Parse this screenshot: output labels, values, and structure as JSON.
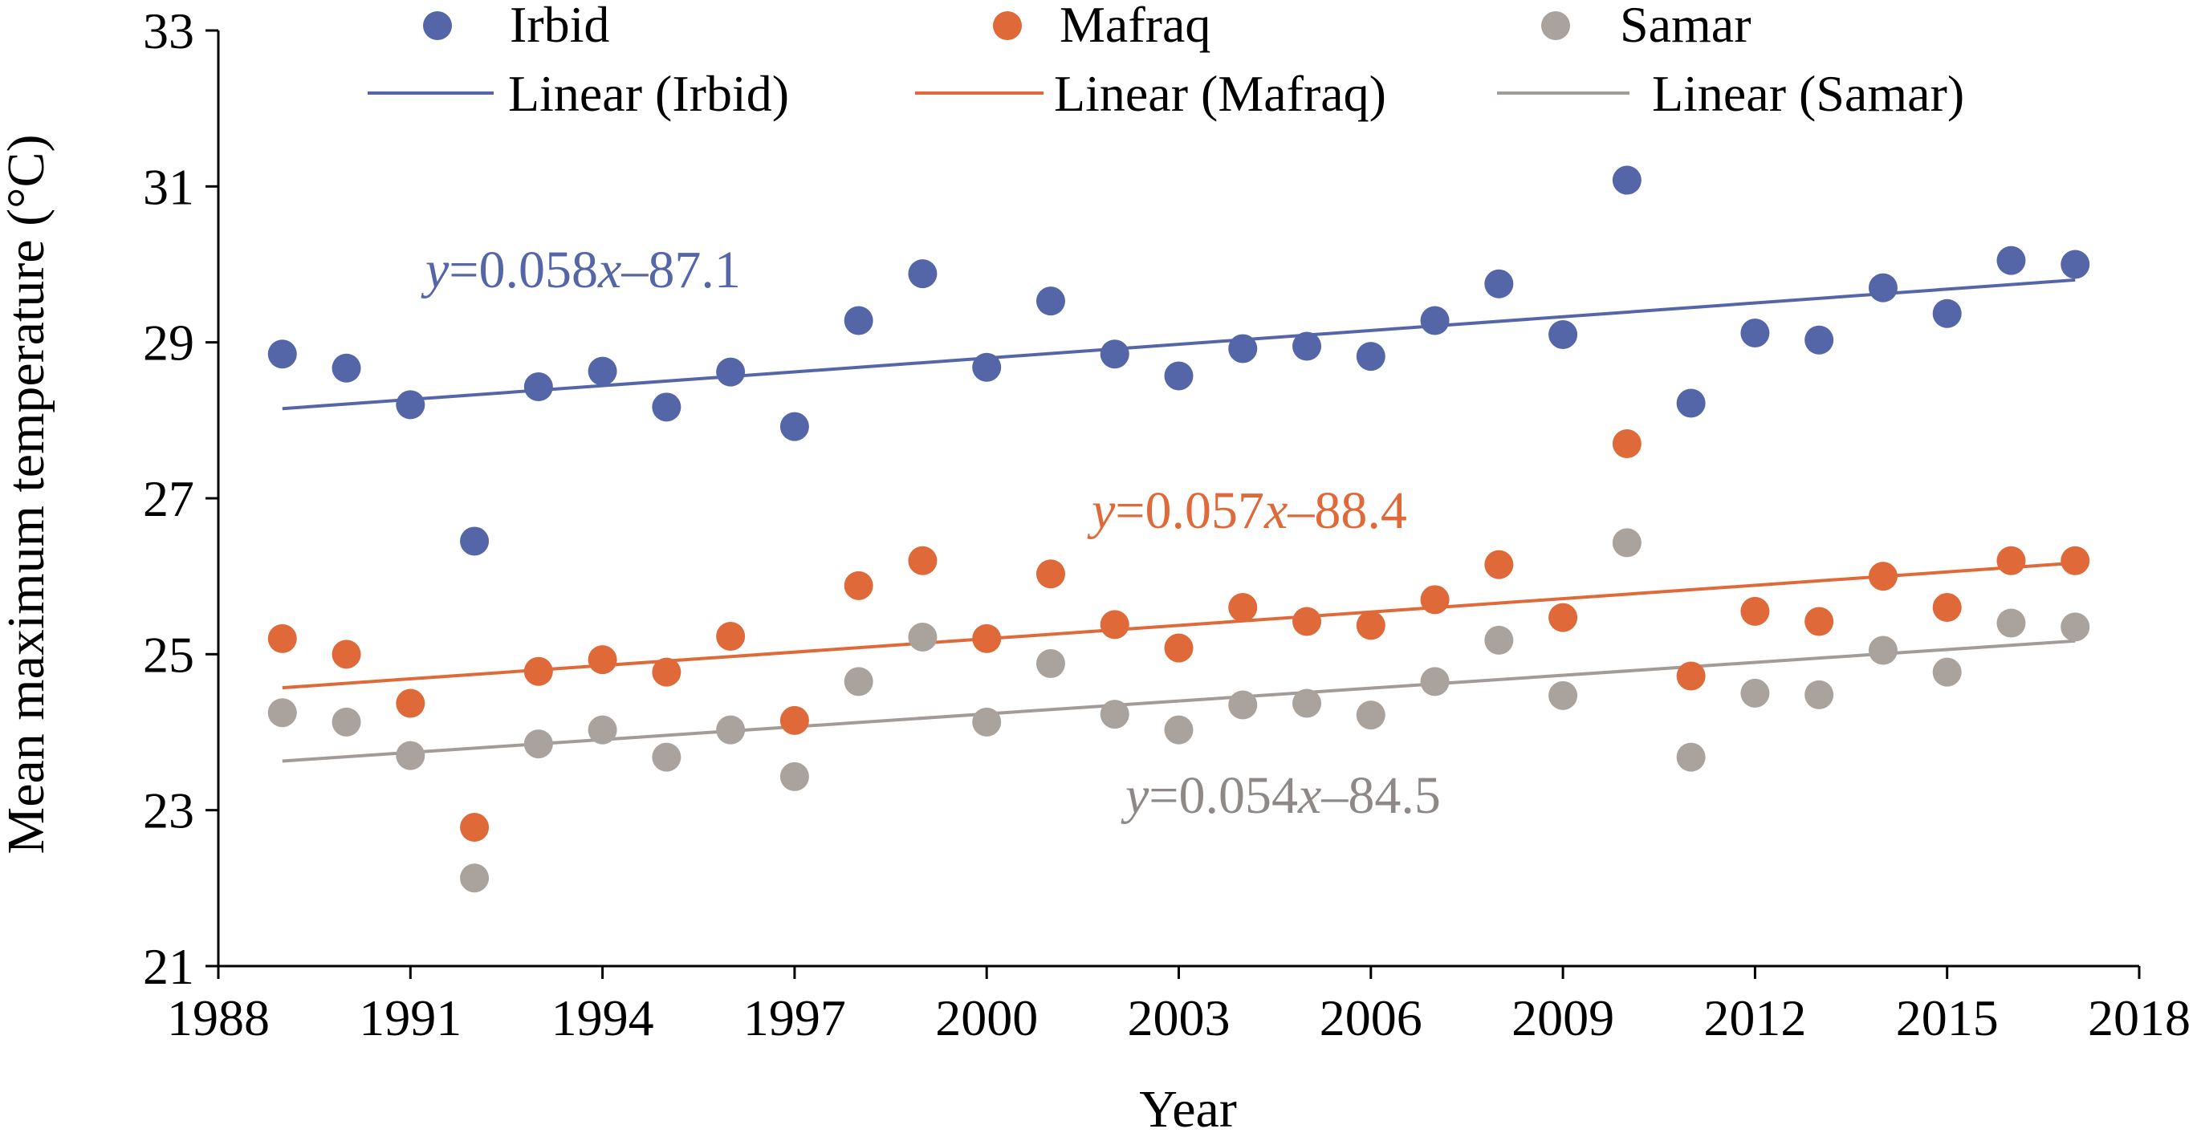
{
  "chart_data": {
    "type": "scatter",
    "xlabel": "Year",
    "ylabel": "Mean maximum temperature (°C)",
    "xlim": [
      1988,
      2018
    ],
    "ylim": [
      21,
      33
    ],
    "x_ticks": [
      "1988",
      "1991",
      "1994",
      "1997",
      "2000",
      "2003",
      "2006",
      "2009",
      "2012",
      "2015",
      "2018"
    ],
    "y_ticks": [
      "21",
      "23",
      "25",
      "27",
      "29",
      "31",
      "33"
    ],
    "x": [
      1989,
      1990,
      1991,
      1992,
      1993,
      1994,
      1995,
      1996,
      1997,
      1998,
      1999,
      2000,
      2001,
      2002,
      2003,
      2004,
      2005,
      2006,
      2007,
      2008,
      2009,
      2010,
      2011,
      2012,
      2013,
      2014,
      2015,
      2016,
      2017
    ],
    "legend_position": "top",
    "series": [
      {
        "name": "Irbid",
        "color": "#5566a8",
        "values": [
          28.85,
          28.67,
          28.2,
          26.45,
          28.43,
          28.63,
          28.17,
          28.62,
          27.92,
          29.28,
          29.88,
          28.68,
          29.53,
          28.85,
          28.57,
          28.92,
          28.95,
          28.82,
          29.28,
          29.75,
          29.1,
          31.08,
          28.22,
          29.12,
          29.03,
          29.7,
          29.37,
          30.05,
          30.0
        ],
        "trend_label": "Linear (Irbid)",
        "trend": [
          28.15,
          29.8
        ],
        "equation": {
          "prefix": "y",
          "mid": "=0.058",
          "var": "x",
          "suffix": "–87.1"
        }
      },
      {
        "name": "Mafraq",
        "color": "#e0693a",
        "values": [
          25.2,
          25.0,
          24.37,
          22.78,
          24.78,
          24.93,
          24.77,
          25.23,
          24.15,
          25.88,
          26.2,
          25.2,
          26.03,
          25.38,
          25.08,
          25.6,
          25.42,
          25.37,
          25.7,
          26.15,
          25.47,
          27.7,
          24.72,
          25.55,
          25.42,
          26.0,
          25.6,
          26.2,
          26.2
        ],
        "trend_label": "Linear (Mafraq)",
        "trend": [
          24.57,
          26.17
        ],
        "equation": {
          "prefix": "y",
          "mid": "=0.057",
          "var": "x",
          "suffix": "–88.4"
        }
      },
      {
        "name": "Samar",
        "color": "#aaa29d",
        "values": [
          24.25,
          24.13,
          23.7,
          22.13,
          23.85,
          24.03,
          23.68,
          24.03,
          23.43,
          24.65,
          25.22,
          24.13,
          24.88,
          24.23,
          24.03,
          24.35,
          24.37,
          24.22,
          24.65,
          25.18,
          24.47,
          26.43,
          23.68,
          24.5,
          24.48,
          25.05,
          24.77,
          25.4,
          25.35
        ],
        "trend_label": "Linear (Samar)",
        "trend": [
          23.63,
          25.17
        ],
        "equation": {
          "prefix": "y",
          "mid": "=0.054",
          "var": "x",
          "suffix": "–84.5"
        }
      }
    ]
  },
  "colors": {
    "irbid_trend": "#5566a8",
    "mafraq_trend": "#e0693a",
    "samar_trend": "#a39b97",
    "irbid_equation": "#5566a8",
    "mafraq_equation": "#e0693a",
    "samar_equation": "#8e8987",
    "axis": "#000000"
  }
}
